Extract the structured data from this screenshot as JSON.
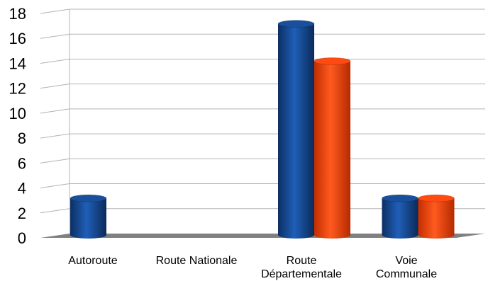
{
  "chart_data": {
    "type": "bar",
    "style": "3d-cylinder",
    "categories": [
      [
        "Autoroute"
      ],
      [
        "Route Nationale"
      ],
      [
        "Route",
        "Départementale"
      ],
      [
        "Voie",
        "Communale"
      ]
    ],
    "series": [
      {
        "color": "#1a4f9c",
        "values": [
          3,
          0,
          17,
          3
        ]
      },
      {
        "color": "#ff4a12",
        "values": [
          0,
          0,
          14,
          3
        ]
      }
    ],
    "ylim": [
      0,
      18
    ],
    "yticks": [
      0,
      2,
      4,
      6,
      8,
      10,
      12,
      14,
      16,
      18
    ],
    "grid": true,
    "legend": "none",
    "floor_color": "#808080"
  }
}
